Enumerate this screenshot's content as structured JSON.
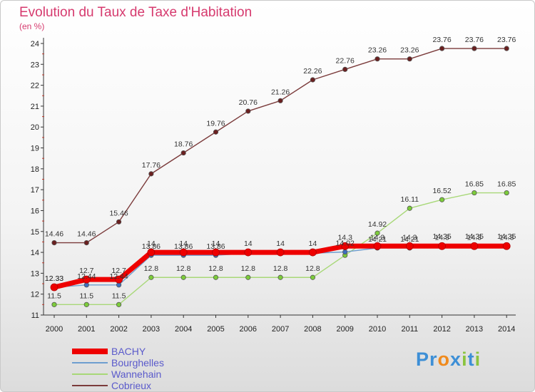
{
  "title": "Evolution du Taux de Taxe d'Habitation",
  "unit_label": "(en %)",
  "logo": {
    "parts": [
      {
        "text": "Pr",
        "color": "#3d8fd6"
      },
      {
        "text": "o",
        "color": "#f08a1c"
      },
      {
        "text": "x",
        "color": "#3d8fd6"
      },
      {
        "text": "i",
        "color": "#8ac43f"
      },
      {
        "text": "t",
        "color": "#3d8fd6"
      },
      {
        "text": "i",
        "color": "#8ac43f"
      }
    ]
  },
  "chart_data": {
    "type": "line",
    "title": "Evolution du Taux de Taxe d'Habitation",
    "ylabel": "(en %)",
    "xlabel": "",
    "x": [
      "2000",
      "2001",
      "2002",
      "2003",
      "2004",
      "2005",
      "2006",
      "2007",
      "2008",
      "2009",
      "2010",
      "2011",
      "2012",
      "2013",
      "2014"
    ],
    "ylim": [
      11,
      24
    ],
    "yticks": [
      11,
      12,
      13,
      14,
      15,
      16,
      17,
      18,
      19,
      20,
      21,
      22,
      23,
      24
    ],
    "grid": false,
    "legend_position": "bottom-left",
    "series": [
      {
        "name": "BACHY",
        "color": "#ee0000",
        "marker_color": "#ee0000",
        "values": [
          12.33,
          12.7,
          12.7,
          14,
          14,
          14,
          14,
          14,
          14,
          14.3,
          14.3,
          14.3,
          14.3,
          14.3,
          14.3
        ],
        "labels": [
          "12.33",
          "12.7",
          "12.7",
          "14",
          "14",
          "14",
          "14",
          "14",
          "14",
          "14.3",
          "14.3",
          "14.3",
          "14.3",
          "14.3",
          "14.3"
        ]
      },
      {
        "name": "Bourghelles",
        "color": "#6e9ed0",
        "marker_color": "#3d6fbf",
        "values": [
          12.33,
          12.44,
          12.44,
          13.86,
          13.86,
          13.86,
          13.96,
          13.96,
          13.96,
          14.02,
          14.21,
          14.21,
          14.35,
          14.35,
          14.35
        ],
        "labels": [
          "12.33",
          "12.44",
          "12.44",
          "13.86",
          "13.86",
          "13.86",
          "",
          "",
          "",
          "14.02",
          "14.21",
          "14.21",
          "14.35",
          "14.35",
          "14.35"
        ]
      },
      {
        "name": "Wannehain",
        "color": "#a8d878",
        "marker_color": "#7ccc3a",
        "values": [
          11.5,
          11.5,
          11.5,
          12.8,
          12.8,
          12.8,
          12.8,
          12.8,
          12.8,
          13.86,
          14.92,
          16.11,
          16.52,
          16.85,
          16.85
        ],
        "labels": [
          "11.5",
          "11.5",
          "11.5",
          "12.8",
          "12.8",
          "12.8",
          "12.8",
          "12.8",
          "12.8",
          "",
          "14.92",
          "16.11",
          "16.52",
          "16.85",
          "16.85"
        ]
      },
      {
        "name": "Cobrieux",
        "color": "#7b3b3b",
        "marker_color": "#6b2020",
        "values": [
          14.46,
          14.46,
          15.46,
          17.76,
          18.76,
          19.76,
          20.76,
          21.26,
          22.26,
          22.76,
          23.26,
          23.26,
          23.76,
          23.76,
          23.76
        ],
        "labels": [
          "14.46",
          "14.46",
          "15.46",
          "17.76",
          "18.76",
          "19.76",
          "20.76",
          "21.26",
          "22.26",
          "22.76",
          "23.26",
          "23.26",
          "23.76",
          "23.76",
          "23.76"
        ]
      }
    ]
  }
}
